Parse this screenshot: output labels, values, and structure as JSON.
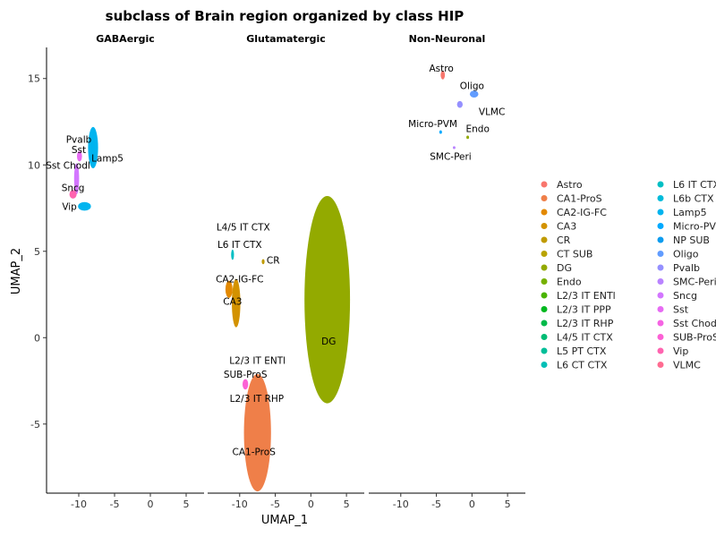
{
  "chart_data": {
    "type": "scatter",
    "title": "subclass of Brain region organized by class HIP",
    "xlabel": "UMAP_1",
    "ylabel": "UMAP_2",
    "xlim": [
      -14.5,
      7.5
    ],
    "ylim": [
      -9,
      16.8
    ],
    "x_ticks": [
      -10,
      -5,
      0,
      5
    ],
    "y_ticks": [
      -5,
      0,
      5,
      10,
      15
    ],
    "x_tick_labels": [
      "-10",
      "-5",
      "0",
      "5"
    ],
    "y_tick_labels": [
      "-5",
      "0",
      "5",
      "10",
      "15"
    ],
    "grid": false,
    "legend_position": "right",
    "legend": [
      {
        "name": "Astro",
        "color": "#F8766D"
      },
      {
        "name": "CA1-ProS",
        "color": "#EF7F49"
      },
      {
        "name": "CA2-IG-FC",
        "color": "#E38900"
      },
      {
        "name": "CA3",
        "color": "#D39200"
      },
      {
        "name": "CR",
        "color": "#C09B00"
      },
      {
        "name": "CT SUB",
        "color": "#B9A300"
      },
      {
        "name": "DG",
        "color": "#93AA00"
      },
      {
        "name": "Endo",
        "color": "#76B000"
      },
      {
        "name": "L2/3 IT ENTl",
        "color": "#4AB400"
      },
      {
        "name": "L2/3 IT PPP",
        "color": "#00B81F"
      },
      {
        "name": "L2/3 IT RHP",
        "color": "#00BA4A"
      },
      {
        "name": "L4/5 IT CTX",
        "color": "#00BC74"
      },
      {
        "name": "L5 PT CTX",
        "color": "#00BE99"
      },
      {
        "name": "L6 CT CTX",
        "color": "#00BFB6"
      },
      {
        "name": "L6 IT CTX",
        "color": "#00BFC4"
      },
      {
        "name": "L6b CTX",
        "color": "#00BBDA"
      },
      {
        "name": "Lamp5",
        "color": "#00B4EF"
      },
      {
        "name": "Micro-PVM",
        "color": "#00A9FF"
      },
      {
        "name": "NP SUB",
        "color": "#0D9CEF"
      },
      {
        "name": "Oligo",
        "color": "#619CFF"
      },
      {
        "name": "Pvalb",
        "color": "#9590FF"
      },
      {
        "name": "SMC-Peri",
        "color": "#B983FF"
      },
      {
        "name": "Sncg",
        "color": "#D376FF"
      },
      {
        "name": "Sst",
        "color": "#E76BF3"
      },
      {
        "name": "Sst Chodl",
        "color": "#F564E3"
      },
      {
        "name": "SUB-ProS",
        "color": "#FC61D5"
      },
      {
        "name": "Vip",
        "color": "#FF64B0"
      },
      {
        "name": "VLMC",
        "color": "#FF6C91"
      }
    ],
    "facets": [
      {
        "name": "GABAergic",
        "clusters": [
          {
            "label": "Pvalb",
            "x": -8,
            "y": 11,
            "w": 0.7,
            "h": 1.2,
            "color": "#00B4EF"
          },
          {
            "label": "Sst",
            "x": -9.9,
            "y": 10.5,
            "w": 0.35,
            "h": 0.3,
            "color": "#E76BF3"
          },
          {
            "label": "Sncg",
            "x": -10.3,
            "y": 9.2,
            "w": 0.35,
            "h": 0.9,
            "color": "#D376FF"
          },
          {
            "label": "Vip",
            "x": -10.8,
            "y": 8.3,
            "w": 0.5,
            "h": 0.25,
            "color": "#FF64B0"
          },
          {
            "label": "Lamp5",
            "x": -9.2,
            "y": 7.6,
            "w": 0.9,
            "h": 0.25,
            "color": "#00B4EF"
          }
        ],
        "labels": [
          {
            "text": "Pvalb",
            "x": -10,
            "y": 11.5
          },
          {
            "text": "Sst",
            "x": -10,
            "y": 10.9
          },
          {
            "text": "Lamp5",
            "x": -6,
            "y": 10.4
          },
          {
            "text": "Sst Chodl",
            "x": -11.5,
            "y": 10.0
          },
          {
            "text": "Sncg",
            "x": -10.8,
            "y": 8.7
          },
          {
            "text": "Vip",
            "x": -11.3,
            "y": 7.6
          }
        ]
      },
      {
        "name": "Glutamatergic",
        "clusters": [
          {
            "label": "CA1-ProS",
            "x": -7.5,
            "y": -5.5,
            "w": 1.9,
            "h": 3.4,
            "color": "#EF7F49"
          },
          {
            "label": "DG",
            "x": 2.3,
            "y": 2.2,
            "w": 3.2,
            "h": 6.0,
            "color": "#93AA00"
          },
          {
            "label": "CA3",
            "x": -10.5,
            "y": 2.0,
            "w": 0.6,
            "h": 1.4,
            "color": "#D39200"
          },
          {
            "label": "CA2-IG-FC",
            "x": -11.5,
            "y": 2.8,
            "w": 0.5,
            "h": 0.5,
            "color": "#E38900"
          },
          {
            "label": "L6 IT CTX",
            "x": -11,
            "y": 4.8,
            "w": 0.2,
            "h": 0.3,
            "color": "#00BFC4"
          },
          {
            "label": "SUB-ProS",
            "x": -9.2,
            "y": -2.7,
            "w": 0.4,
            "h": 0.3,
            "color": "#FC61D5"
          },
          {
            "label": "CR",
            "x": -6.7,
            "y": 4.4,
            "w": 0.2,
            "h": 0.15,
            "color": "#C09B00"
          }
        ],
        "labels": [
          {
            "text": "L4/5 IT CTX",
            "x": -9.5,
            "y": 6.4
          },
          {
            "text": "L6 IT CTX",
            "x": -10,
            "y": 5.4
          },
          {
            "text": "CR",
            "x": -5.3,
            "y": 4.5
          },
          {
            "text": "CA2-IG-FC",
            "x": -10,
            "y": 3.4
          },
          {
            "text": "CA3",
            "x": -11,
            "y": 2.1
          },
          {
            "text": "L2/3 IT ENTl",
            "x": -7.5,
            "y": -1.3
          },
          {
            "text": "SUB-ProS",
            "x": -9.2,
            "y": -2.1
          },
          {
            "text": "L2/3 IT RHP",
            "x": -7.6,
            "y": -3.5
          },
          {
            "text": "DG",
            "x": 2.5,
            "y": -0.2
          },
          {
            "text": "CA1-ProS",
            "x": -8,
            "y": -6.6
          }
        ]
      },
      {
        "name": "Non-Neuronal",
        "clusters": [
          {
            "label": "Astro",
            "x": -4.1,
            "y": 15.2,
            "w": 0.3,
            "h": 0.25,
            "color": "#F8766D"
          },
          {
            "label": "Oligo",
            "x": 0.3,
            "y": 14.1,
            "w": 0.6,
            "h": 0.2,
            "color": "#619CFF"
          },
          {
            "label": "VLMC",
            "x": -1.7,
            "y": 13.5,
            "w": 0.4,
            "h": 0.2,
            "color": "#9590FF"
          },
          {
            "label": "Micro-PVM",
            "x": -4.4,
            "y": 11.9,
            "w": 0.15,
            "h": 0.1,
            "color": "#00A9FF"
          },
          {
            "label": "Endo",
            "x": -0.6,
            "y": 11.6,
            "w": 0.15,
            "h": 0.1,
            "color": "#93AA00"
          },
          {
            "label": "SMC-Peri",
            "x": -2.5,
            "y": 11.0,
            "w": 0.1,
            "h": 0.08,
            "color": "#B983FF"
          }
        ],
        "labels": [
          {
            "text": "Astro",
            "x": -4.3,
            "y": 15.6
          },
          {
            "text": "Oligo",
            "x": 0,
            "y": 14.6
          },
          {
            "text": "VLMC",
            "x": 2.8,
            "y": 13.1
          },
          {
            "text": "Micro-PVM",
            "x": -5.5,
            "y": 12.4
          },
          {
            "text": "Endo",
            "x": 0.8,
            "y": 12.1
          },
          {
            "text": "SMC-Peri",
            "x": -3,
            "y": 10.5
          }
        ]
      }
    ]
  }
}
